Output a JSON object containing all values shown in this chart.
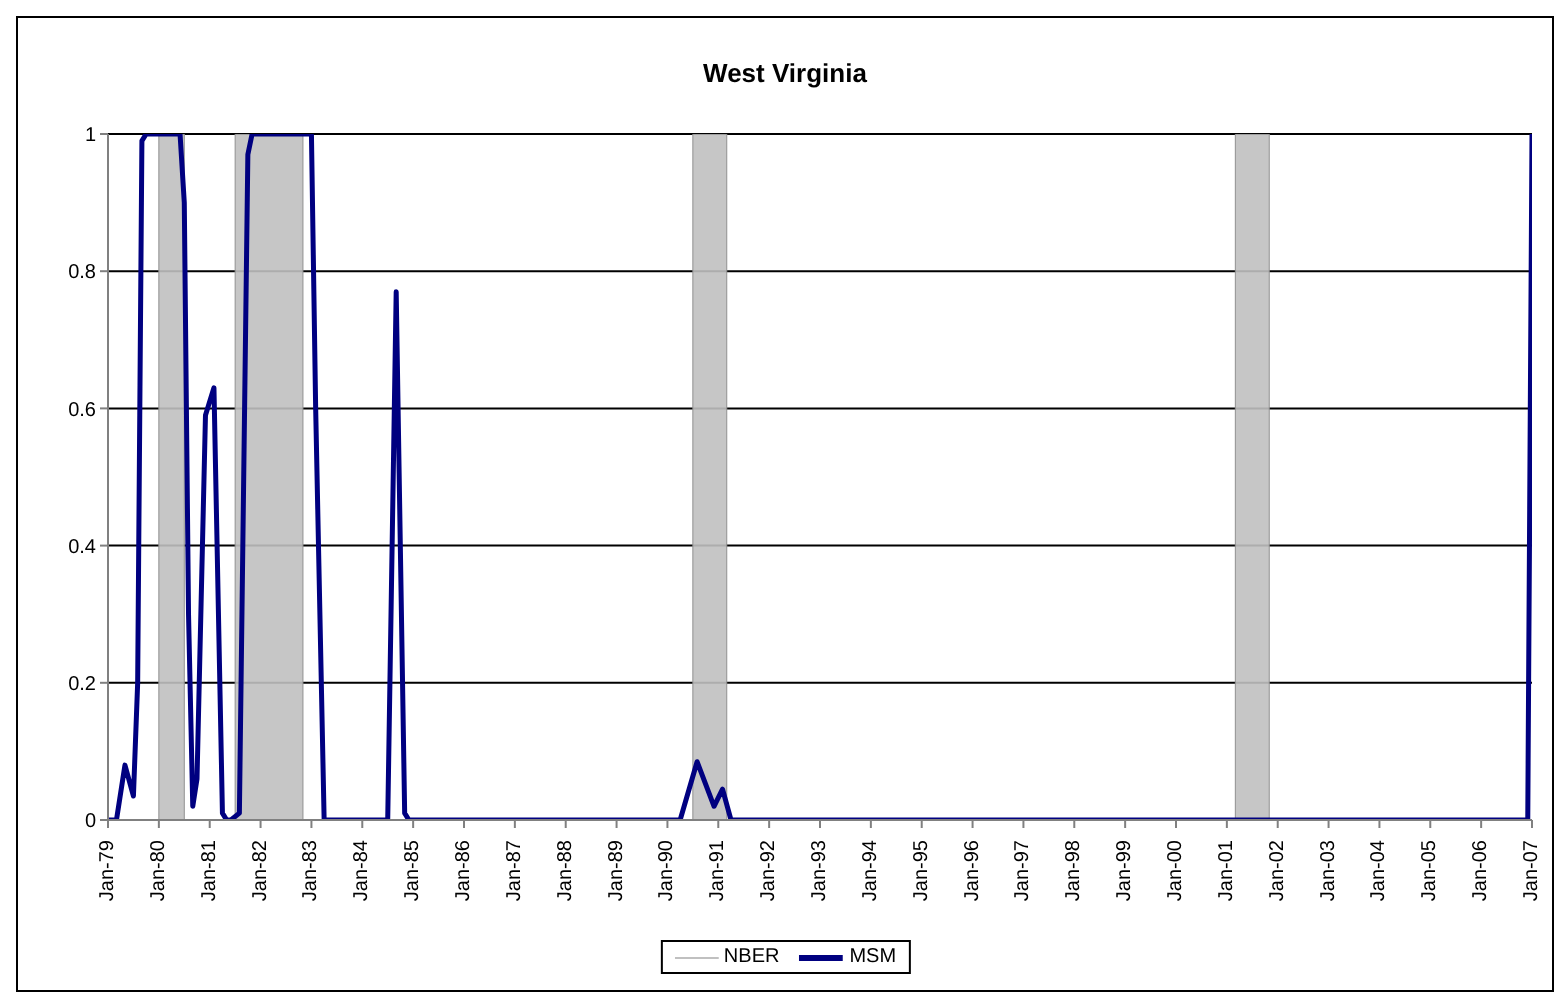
{
  "chart_data": {
    "type": "line",
    "title": "West Virginia",
    "x": [
      "1979-01",
      "1979-03",
      "1979-05",
      "1979-07",
      "1979-08",
      "1979-09",
      "1979-10",
      "1980-06",
      "1980-07",
      "1980-08",
      "1980-09",
      "1980-10",
      "1980-12",
      "1981-02",
      "1981-04",
      "1981-05",
      "1981-06",
      "1981-08",
      "1981-10",
      "1981-11",
      "1983-01",
      "1983-02",
      "1983-04",
      "1984-07",
      "1984-09",
      "1984-11",
      "1984-12",
      "1990-04",
      "1990-08",
      "1990-12",
      "1991-02",
      "1991-04",
      "2006-12",
      "2007-01"
    ],
    "series": [
      {
        "name": "MSM",
        "color": "#000080",
        "values": [
          0,
          0,
          0.08,
          0.035,
          0.2,
          0.99,
          1,
          1,
          0.9,
          0.3,
          0.02,
          0.06,
          0.59,
          0.63,
          0.01,
          0,
          0,
          0.01,
          0.97,
          1,
          1,
          0.6,
          0,
          0,
          0.77,
          0.01,
          0,
          0,
          0.085,
          0.02,
          0.045,
          0,
          0,
          1
        ]
      }
    ],
    "bands": [
      {
        "axis": "x",
        "from": "1980-01",
        "to": "1980-07",
        "label": "NBER",
        "color": "#c0c0c0"
      },
      {
        "axis": "x",
        "from": "1981-07",
        "to": "1982-11",
        "color": "#c0c0c0"
      },
      {
        "axis": "x",
        "from": "1990-07",
        "to": "1991-03",
        "color": "#c0c0c0"
      },
      {
        "axis": "x",
        "from": "2001-03",
        "to": "2001-11",
        "color": "#c0c0c0"
      }
    ],
    "xlim": [
      "1979-01",
      "2007-01"
    ],
    "xticks": [
      {
        "value": "1979-01",
        "label": "Jan-79"
      },
      {
        "value": "1980-01",
        "label": "Jan-80"
      },
      {
        "value": "1981-01",
        "label": "Jan-81"
      },
      {
        "value": "1982-01",
        "label": "Jan-82"
      },
      {
        "value": "1983-01",
        "label": "Jan-83"
      },
      {
        "value": "1984-01",
        "label": "Jan-84"
      },
      {
        "value": "1985-01",
        "label": "Jan-85"
      },
      {
        "value": "1986-01",
        "label": "Jan-86"
      },
      {
        "value": "1987-01",
        "label": "Jan-87"
      },
      {
        "value": "1988-01",
        "label": "Jan-88"
      },
      {
        "value": "1989-01",
        "label": "Jan-89"
      },
      {
        "value": "1990-01",
        "label": "Jan-90"
      },
      {
        "value": "1991-01",
        "label": "Jan-91"
      },
      {
        "value": "1992-01",
        "label": "Jan-92"
      },
      {
        "value": "1993-01",
        "label": "Jan-93"
      },
      {
        "value": "1994-01",
        "label": "Jan-94"
      },
      {
        "value": "1995-01",
        "label": "Jan-95"
      },
      {
        "value": "1996-01",
        "label": "Jan-96"
      },
      {
        "value": "1997-01",
        "label": "Jan-97"
      },
      {
        "value": "1998-01",
        "label": "Jan-98"
      },
      {
        "value": "1999-01",
        "label": "Jan-99"
      },
      {
        "value": "2000-01",
        "label": "Jan-00"
      },
      {
        "value": "2001-01",
        "label": "Jan-01"
      },
      {
        "value": "2002-01",
        "label": "Jan-02"
      },
      {
        "value": "2003-01",
        "label": "Jan-03"
      },
      {
        "value": "2004-01",
        "label": "Jan-04"
      },
      {
        "value": "2005-01",
        "label": "Jan-05"
      },
      {
        "value": "2006-01",
        "label": "Jan-06"
      },
      {
        "value": "2007-01",
        "label": "Jan-07"
      }
    ],
    "ylim": [
      0,
      1
    ],
    "yticks": [
      0,
      0.2,
      0.4,
      0.6,
      0.8,
      1
    ],
    "grid": "y",
    "legend": "bottom",
    "marker": "none",
    "line_style": "solid"
  }
}
